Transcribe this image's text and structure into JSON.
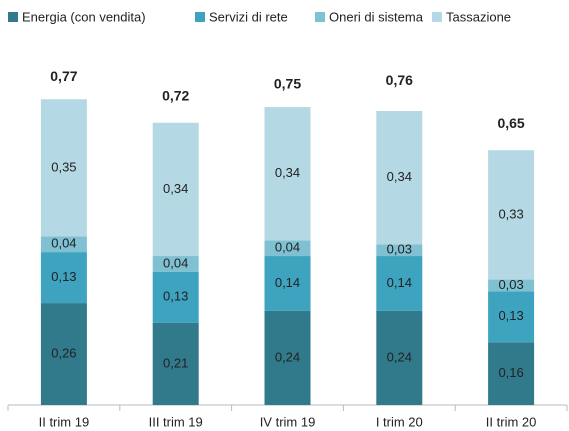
{
  "chart_data": {
    "type": "stacked_bar",
    "categories": [
      "II trim 19",
      "III trim 19",
      "IV trim 19",
      "I trim 20",
      "II trim 20"
    ],
    "series": [
      {
        "name": "Energia (con vendita)",
        "color": "#317a8c",
        "values": [
          0.26,
          0.21,
          0.24,
          0.24,
          0.16
        ],
        "value_labels": [
          "0,26",
          "0,21",
          "0,24",
          "0,24",
          "0,16"
        ]
      },
      {
        "name": "Servizi di rete",
        "color": "#3ea3be",
        "values": [
          0.13,
          0.13,
          0.14,
          0.14,
          0.13
        ],
        "value_labels": [
          "0,13",
          "0,13",
          "0,14",
          "0,14",
          "0,13"
        ]
      },
      {
        "name": "Oneri di sistema",
        "color": "#7fc0d3",
        "values": [
          0.04,
          0.04,
          0.04,
          0.03,
          0.03
        ],
        "value_labels": [
          "0,04",
          "0,04",
          "0,04",
          "0,03",
          "0,03"
        ]
      },
      {
        "name": "Tassazione",
        "color": "#b5d9e4",
        "values": [
          0.35,
          0.34,
          0.34,
          0.34,
          0.33
        ],
        "value_labels": [
          "0,35",
          "0,34",
          "0,34",
          "0,34",
          "0,33"
        ]
      }
    ],
    "totals": [
      0.77,
      0.72,
      0.75,
      0.76,
      0.65
    ],
    "total_labels": [
      "0,77",
      "0,72",
      "0,75",
      "0,76",
      "0,65"
    ]
  }
}
